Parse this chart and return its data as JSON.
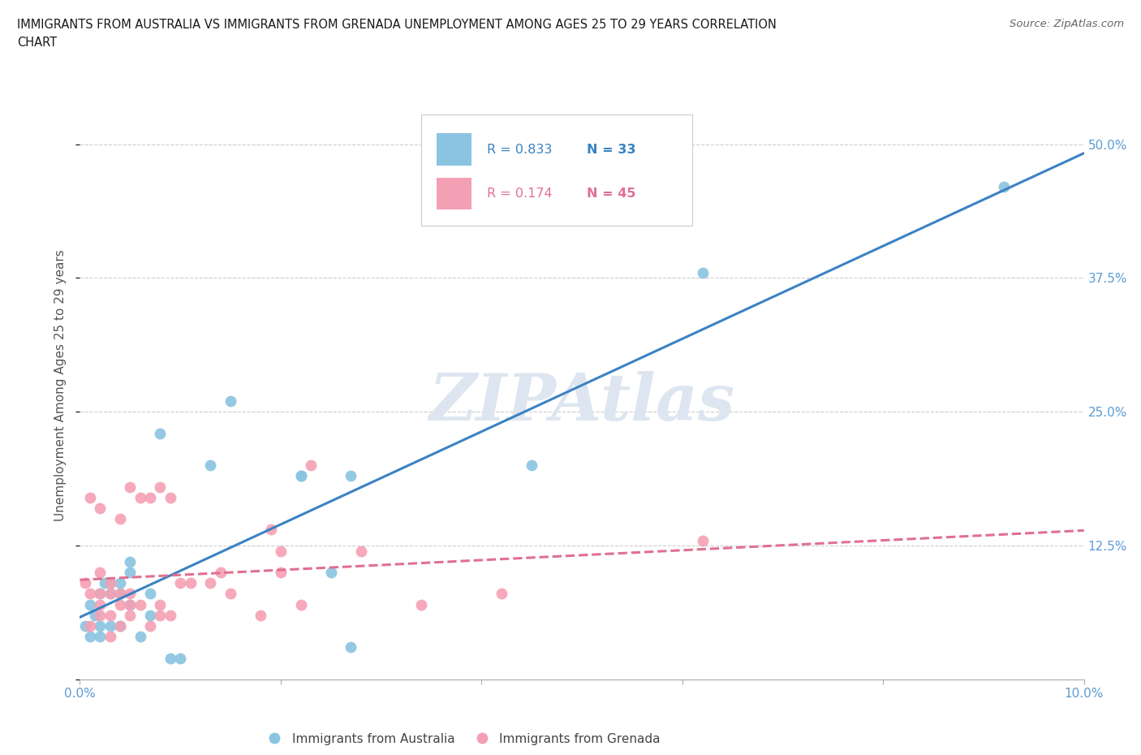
{
  "title_line1": "IMMIGRANTS FROM AUSTRALIA VS IMMIGRANTS FROM GRENADA UNEMPLOYMENT AMONG AGES 25 TO 29 YEARS CORRELATION",
  "title_line2": "CHART",
  "source_text": "Source: ZipAtlas.com",
  "ylabel": "Unemployment Among Ages 25 to 29 years",
  "xlim": [
    0.0,
    0.1
  ],
  "ylim": [
    0.0,
    0.55
  ],
  "yticks": [
    0.0,
    0.125,
    0.25,
    0.375,
    0.5
  ],
  "ytick_labels": [
    "",
    "12.5%",
    "25.0%",
    "37.5%",
    "50.0%"
  ],
  "xticks": [
    0.0,
    0.02,
    0.04,
    0.06,
    0.08,
    0.1
  ],
  "xtick_labels": [
    "0.0%",
    "",
    "",
    "",
    "",
    "10.0%"
  ],
  "australia_x": [
    0.0005,
    0.001,
    0.001,
    0.0015,
    0.002,
    0.002,
    0.002,
    0.0025,
    0.003,
    0.003,
    0.003,
    0.004,
    0.004,
    0.004,
    0.005,
    0.005,
    0.005,
    0.006,
    0.007,
    0.007,
    0.008,
    0.009,
    0.01,
    0.013,
    0.015,
    0.022,
    0.022,
    0.025,
    0.027,
    0.027,
    0.045,
    0.062,
    0.092
  ],
  "australia_y": [
    0.05,
    0.04,
    0.07,
    0.06,
    0.04,
    0.05,
    0.08,
    0.09,
    0.05,
    0.08,
    0.09,
    0.05,
    0.08,
    0.09,
    0.07,
    0.1,
    0.11,
    0.04,
    0.06,
    0.08,
    0.23,
    0.02,
    0.02,
    0.2,
    0.26,
    0.19,
    0.19,
    0.1,
    0.19,
    0.03,
    0.2,
    0.38,
    0.46
  ],
  "grenada_x": [
    0.0005,
    0.001,
    0.001,
    0.001,
    0.002,
    0.002,
    0.002,
    0.002,
    0.002,
    0.003,
    0.003,
    0.003,
    0.003,
    0.004,
    0.004,
    0.004,
    0.004,
    0.005,
    0.005,
    0.005,
    0.005,
    0.006,
    0.006,
    0.007,
    0.007,
    0.008,
    0.008,
    0.008,
    0.009,
    0.009,
    0.01,
    0.011,
    0.013,
    0.014,
    0.015,
    0.018,
    0.019,
    0.02,
    0.02,
    0.022,
    0.023,
    0.028,
    0.034,
    0.042,
    0.062
  ],
  "grenada_y": [
    0.09,
    0.05,
    0.08,
    0.17,
    0.06,
    0.07,
    0.08,
    0.1,
    0.16,
    0.04,
    0.06,
    0.08,
    0.09,
    0.05,
    0.07,
    0.08,
    0.15,
    0.06,
    0.07,
    0.08,
    0.18,
    0.07,
    0.17,
    0.05,
    0.17,
    0.06,
    0.07,
    0.18,
    0.06,
    0.17,
    0.09,
    0.09,
    0.09,
    0.1,
    0.08,
    0.06,
    0.14,
    0.1,
    0.12,
    0.07,
    0.2,
    0.12,
    0.07,
    0.08,
    0.13
  ],
  "australia_R": 0.833,
  "australia_N": 33,
  "grenada_R": 0.174,
  "grenada_N": 45,
  "australia_dot_color": "#8ac4e0",
  "australia_line_color": "#3b82c4",
  "grenada_dot_color": "#f4a0b4",
  "grenada_line_color": "#e07090",
  "tick_color": "#5b9bd5",
  "watermark_text": "ZIPAtlas",
  "watermark_color": "#dde6f0",
  "background_color": "#ffffff",
  "grid_color": "#cccccc",
  "legend_text_color_blue": "#3b82c4",
  "legend_text_color_pink": "#e07090"
}
